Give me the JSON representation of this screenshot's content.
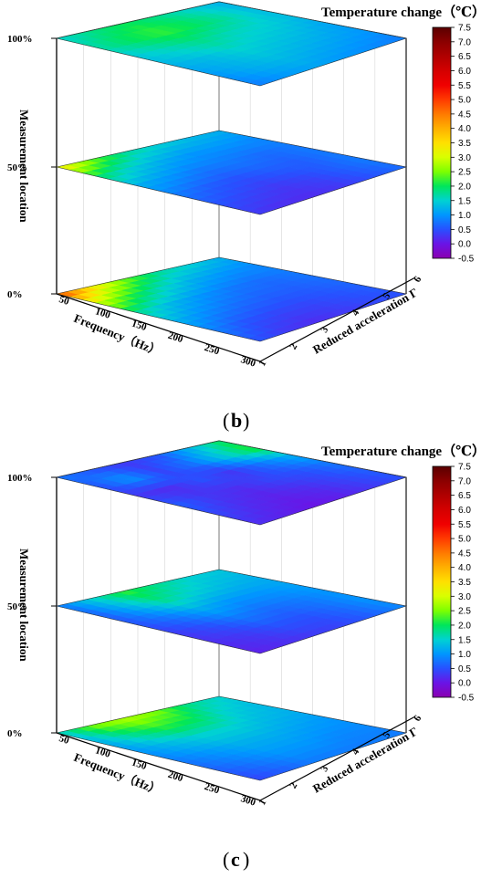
{
  "colorbar": {
    "title": "Temperature change（℃）",
    "ticks": [
      "7.5",
      "7.0",
      "6.5",
      "6.0",
      "5.5",
      "5.0",
      "4.5",
      "4.0",
      "3.5",
      "3.0",
      "2.5",
      "2.0",
      "1.5",
      "1.0",
      "0.5",
      "0.0",
      "-0.5"
    ],
    "colors": [
      "#5a0000",
      "#8b0000",
      "#b00000",
      "#d40000",
      "#f00000",
      "#ff3a00",
      "#ff7a00",
      "#ffb000",
      "#ffe000",
      "#d8ff00",
      "#7dff00",
      "#00e65a",
      "#00d2d2",
      "#0096ff",
      "#2850ff",
      "#6a14e6",
      "#8a00b0"
    ]
  },
  "axes": {
    "z_label": "Measurement location",
    "x_label": "Frequency（Hz）",
    "y_label": "Reduced acceleration Γ",
    "z_ticks": [
      "100%",
      "50%",
      "0%"
    ],
    "x_ticks": [
      "50",
      "100",
      "150",
      "200",
      "250",
      "300"
    ],
    "y_ticks": [
      "6",
      "5",
      "4",
      "3",
      "2",
      "1"
    ]
  },
  "panels": [
    {
      "label": "b"
    },
    {
      "label": "c"
    }
  ],
  "chart_data": [
    {
      "type": "heatmap",
      "title": "",
      "xlabel": "Frequency（Hz）",
      "ylabel": "Reduced acceleration Γ",
      "zlabel": "Measurement location",
      "x": [
        50,
        100,
        150,
        200,
        250,
        300
      ],
      "y": [
        1,
        2,
        3,
        4,
        5,
        6
      ],
      "layers": [
        {
          "name": "100%",
          "grid": [
            [
              1.5,
              1.8,
              2.0,
              1.8,
              1.5,
              1.2
            ],
            [
              1.7,
              2.0,
              2.2,
              2.0,
              1.7,
              1.3
            ],
            [
              1.4,
              1.6,
              1.8,
              1.6,
              1.5,
              1.3
            ],
            [
              1.2,
              1.3,
              1.5,
              1.4,
              1.3,
              1.1
            ],
            [
              1.0,
              1.2,
              1.3,
              1.2,
              1.1,
              1.0
            ],
            [
              0.8,
              1.0,
              1.1,
              1.0,
              0.9,
              0.8
            ]
          ]
        },
        {
          "name": "50%",
          "grid": [
            [
              3.5,
              2.5,
              1.8,
              1.5,
              1.3,
              1.2
            ],
            [
              2.0,
              1.5,
              1.2,
              1.0,
              1.0,
              0.9
            ],
            [
              1.2,
              1.0,
              0.8,
              0.8,
              0.7,
              0.8
            ],
            [
              0.8,
              0.6,
              0.5,
              0.6,
              0.6,
              0.8
            ],
            [
              0.5,
              0.4,
              0.3,
              0.4,
              0.6,
              0.8
            ],
            [
              0.3,
              0.2,
              0.2,
              0.3,
              0.5,
              0.7
            ]
          ]
        },
        {
          "name": "0%",
          "grid": [
            [
              5.0,
              3.5,
              2.5,
              1.8,
              1.5,
              1.2
            ],
            [
              3.0,
              2.2,
              1.6,
              1.2,
              1.0,
              0.9
            ],
            [
              1.8,
              1.3,
              1.0,
              0.8,
              0.7,
              0.8
            ],
            [
              1.2,
              0.9,
              0.7,
              0.6,
              0.6,
              0.7
            ],
            [
              0.8,
              0.5,
              0.4,
              0.4,
              0.5,
              0.6
            ],
            [
              0.5,
              0.3,
              0.2,
              0.3,
              0.4,
              0.5
            ]
          ]
        }
      ]
    },
    {
      "type": "heatmap",
      "title": "",
      "xlabel": "Frequency（Hz）",
      "ylabel": "Reduced acceleration Γ",
      "zlabel": "Measurement location",
      "x": [
        50,
        100,
        150,
        200,
        250,
        300
      ],
      "y": [
        1,
        2,
        3,
        4,
        5,
        6
      ],
      "layers": [
        {
          "name": "100%",
          "grid": [
            [
              0.8,
              0.5,
              0.3,
              0.5,
              1.2,
              2.0
            ],
            [
              0.5,
              1.0,
              0.4,
              0.8,
              1.5,
              2.2
            ],
            [
              0.3,
              0.2,
              0.5,
              0.3,
              0.8,
              1.2
            ],
            [
              0.6,
              0.3,
              0.2,
              0.4,
              0.5,
              0.8
            ],
            [
              0.4,
              0.2,
              0.1,
              0.2,
              0.4,
              0.6
            ],
            [
              0.2,
              0.1,
              0.0,
              0.1,
              0.3,
              0.5
            ]
          ]
        },
        {
          "name": "50%",
          "grid": [
            [
              0.8,
              1.5,
              2.2,
              1.8,
              1.5,
              1.4
            ],
            [
              0.6,
              1.2,
              1.8,
              1.5,
              1.3,
              1.2
            ],
            [
              0.5,
              0.8,
              1.2,
              1.0,
              1.0,
              1.1
            ],
            [
              0.3,
              0.5,
              0.8,
              0.7,
              0.8,
              1.0
            ],
            [
              0.2,
              0.3,
              0.5,
              0.5,
              0.7,
              1.0
            ],
            [
              0.1,
              0.2,
              0.3,
              0.4,
              0.6,
              0.9
            ]
          ]
        },
        {
          "name": "0%",
          "grid": [
            [
              1.5,
              2.5,
              2.8,
              2.5,
              1.8,
              1.5
            ],
            [
              1.2,
              1.8,
              2.2,
              2.0,
              1.5,
              1.3
            ],
            [
              1.0,
              1.3,
              1.5,
              1.5,
              1.3,
              1.2
            ],
            [
              0.8,
              1.0,
              1.2,
              1.2,
              1.1,
              1.0
            ],
            [
              0.6,
              0.8,
              1.0,
              1.0,
              0.9,
              0.9
            ],
            [
              0.4,
              0.6,
              0.8,
              0.8,
              0.8,
              0.8
            ]
          ]
        }
      ]
    }
  ]
}
